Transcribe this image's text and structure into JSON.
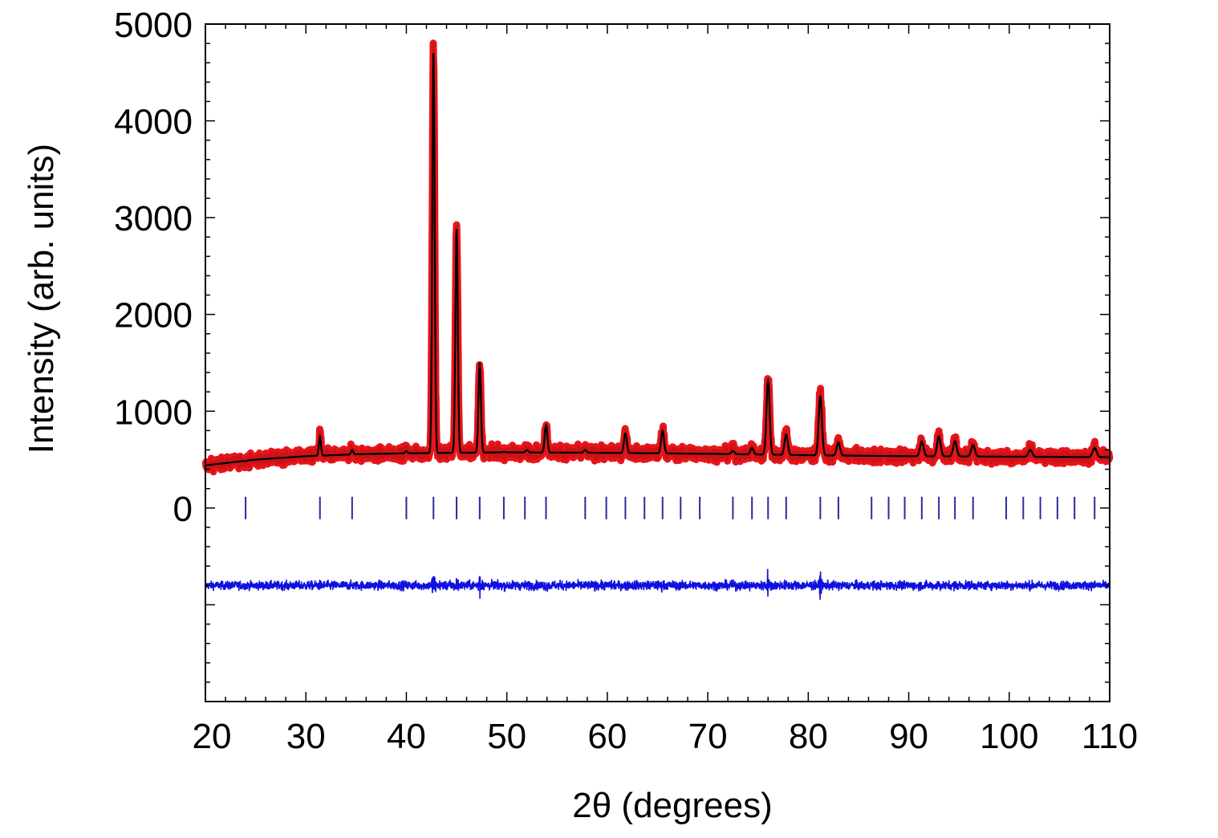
{
  "chart_data": {
    "type": "line",
    "title": "",
    "xlabel": "2θ (degrees)",
    "ylabel": "Intensity (arb. units)",
    "xlim": [
      20,
      110
    ],
    "ylim": [
      -2000,
      5000
    ],
    "x_ticks": [
      "20",
      "30",
      "40",
      "50",
      "60",
      "70",
      "80",
      "90",
      "100",
      "110"
    ],
    "y_ticks": [
      "5000",
      "4000",
      "3000",
      "2000",
      "1000",
      "0"
    ],
    "background_points": [
      [
        20,
        440
      ],
      [
        25,
        500
      ],
      [
        30,
        535
      ],
      [
        35,
        555
      ],
      [
        40,
        565
      ],
      [
        50,
        575
      ],
      [
        60,
        570
      ],
      [
        70,
        560
      ],
      [
        80,
        545
      ],
      [
        90,
        535
      ],
      [
        100,
        530
      ],
      [
        110,
        525
      ]
    ],
    "peaks": [
      {
        "x": 24.0,
        "y": 480
      },
      {
        "x": 31.4,
        "y": 740
      },
      {
        "x": 34.6,
        "y": 600
      },
      {
        "x": 40.0,
        "y": 590
      },
      {
        "x": 42.7,
        "y": 4700
      },
      {
        "x": 45.0,
        "y": 2880
      },
      {
        "x": 47.3,
        "y": 1500
      },
      {
        "x": 49.7,
        "y": 580
      },
      {
        "x": 52.0,
        "y": 600
      },
      {
        "x": 53.9,
        "y": 860
      },
      {
        "x": 57.8,
        "y": 600
      },
      {
        "x": 61.8,
        "y": 770
      },
      {
        "x": 65.5,
        "y": 800
      },
      {
        "x": 72.5,
        "y": 590
      },
      {
        "x": 74.4,
        "y": 620
      },
      {
        "x": 76.0,
        "y": 1320
      },
      {
        "x": 77.8,
        "y": 760
      },
      {
        "x": 81.2,
        "y": 1150
      },
      {
        "x": 83.0,
        "y": 680
      },
      {
        "x": 91.3,
        "y": 690
      },
      {
        "x": 93.0,
        "y": 740
      },
      {
        "x": 94.6,
        "y": 690
      },
      {
        "x": 96.4,
        "y": 650
      },
      {
        "x": 102.1,
        "y": 600
      },
      {
        "x": 108.5,
        "y": 620
      }
    ],
    "bragg_positions": [
      24.0,
      31.4,
      34.6,
      40.0,
      42.7,
      45.0,
      47.3,
      49.7,
      51.8,
      53.9,
      57.8,
      59.9,
      61.8,
      63.7,
      65.5,
      67.3,
      69.2,
      72.5,
      74.4,
      76.0,
      77.8,
      81.2,
      83.0,
      86.3,
      88.0,
      89.6,
      91.3,
      93.0,
      94.6,
      96.4,
      99.7,
      101.4,
      103.1,
      104.8,
      106.5,
      108.5
    ],
    "difference_offset": -800,
    "series": [],
    "colors": {
      "observed": "#e8151b",
      "calculated": "#000000",
      "difference": "#1010e0",
      "bragg": "#2a2aa0"
    },
    "grid": false,
    "legend": "none"
  }
}
